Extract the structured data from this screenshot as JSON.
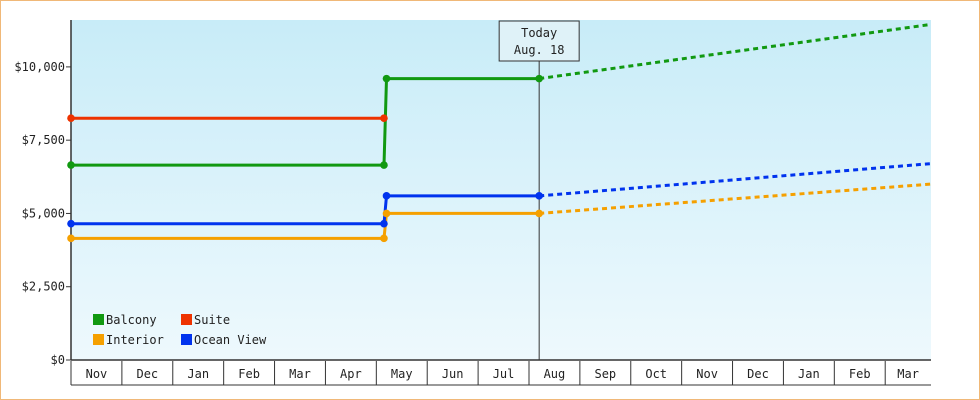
{
  "chart_data": {
    "type": "line",
    "title": "",
    "xlabel": "",
    "ylabel": "",
    "categories": [
      "Nov",
      "Dec",
      "Jan",
      "Feb",
      "Mar",
      "Apr",
      "May",
      "Jun",
      "Jul",
      "Aug",
      "Sep",
      "Oct",
      "Nov",
      "Dec",
      "Jan",
      "Feb",
      "Mar"
    ],
    "y_ticks": [
      "$0",
      "$2,500",
      "$5,000",
      "$7,500",
      "$10,000"
    ],
    "y_tick_values": [
      0,
      2500,
      5000,
      7500,
      10000
    ],
    "ylim": [
      0,
      11600
    ],
    "xlim": [
      0,
      16.9
    ],
    "grid": false,
    "legend_position": "bottom-left",
    "today_marker": {
      "x": 9.2,
      "line1": "Today",
      "line2": "Aug. 18"
    },
    "series": [
      {
        "name": "Balcony",
        "color": "#119911",
        "actual": [
          [
            0,
            6650
          ],
          [
            6.15,
            6650
          ],
          [
            6.2,
            9600
          ],
          [
            9.2,
            9600
          ]
        ],
        "projected": [
          [
            9.2,
            9600
          ],
          [
            16.9,
            11450
          ]
        ]
      },
      {
        "name": "Suite",
        "color": "#ee3300",
        "actual": [
          [
            0,
            8250
          ],
          [
            6.15,
            8250
          ]
        ],
        "projected": []
      },
      {
        "name": "Interior",
        "color": "#f5a000",
        "actual": [
          [
            0,
            4150
          ],
          [
            6.15,
            4150
          ],
          [
            6.2,
            5000
          ],
          [
            9.2,
            5000
          ]
        ],
        "projected": [
          [
            9.2,
            5000
          ],
          [
            16.9,
            6000
          ]
        ]
      },
      {
        "name": "Ocean View",
        "color": "#0033ee",
        "actual": [
          [
            0,
            4650
          ],
          [
            6.15,
            4650
          ],
          [
            6.2,
            5600
          ],
          [
            9.2,
            5600
          ]
        ],
        "projected": [
          [
            9.2,
            5600
          ],
          [
            16.9,
            6700
          ]
        ]
      }
    ]
  }
}
